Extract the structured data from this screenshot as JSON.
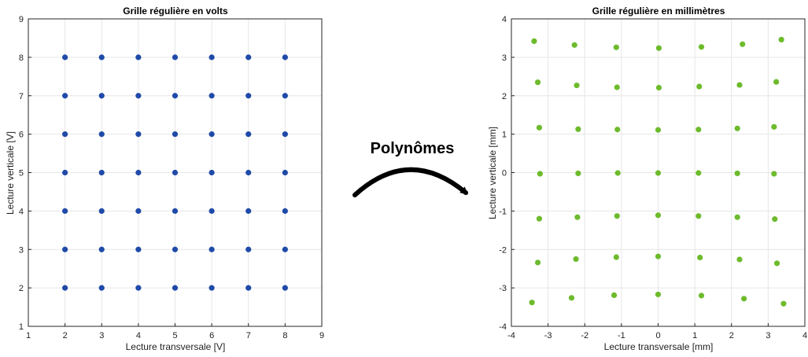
{
  "arrow_label": "Polynômes",
  "colors": {
    "left_points": "#1f4aa8",
    "right_points": "#6dbb2d",
    "grid": "#e6e6e6",
    "axes": "#262626"
  },
  "chart_data": [
    {
      "type": "scatter",
      "title": "Grille régulière en volts",
      "xlabel": "Lecture transversale [V]",
      "ylabel": "Lecture verticale [V]",
      "xlim": [
        1,
        9
      ],
      "ylim": [
        1,
        9
      ],
      "xticks": [
        1,
        2,
        3,
        4,
        5,
        6,
        7,
        8,
        9
      ],
      "yticks": [
        1,
        2,
        3,
        4,
        5,
        6,
        7,
        8,
        9
      ],
      "grid": true,
      "points": [
        [
          2,
          8
        ],
        [
          3,
          8
        ],
        [
          4,
          8
        ],
        [
          5,
          8
        ],
        [
          6,
          8
        ],
        [
          7,
          8
        ],
        [
          8,
          8
        ],
        [
          2,
          7
        ],
        [
          3,
          7
        ],
        [
          4,
          7
        ],
        [
          5,
          7
        ],
        [
          6,
          7
        ],
        [
          7,
          7
        ],
        [
          8,
          7
        ],
        [
          2,
          6
        ],
        [
          3,
          6
        ],
        [
          4,
          6
        ],
        [
          5,
          6
        ],
        [
          6,
          6
        ],
        [
          7,
          6
        ],
        [
          8,
          6
        ],
        [
          2,
          5
        ],
        [
          3,
          5
        ],
        [
          4,
          5
        ],
        [
          5,
          5
        ],
        [
          6,
          5
        ],
        [
          7,
          5
        ],
        [
          8,
          5
        ],
        [
          2,
          4
        ],
        [
          3,
          4
        ],
        [
          4,
          4
        ],
        [
          5,
          4
        ],
        [
          6,
          4
        ],
        [
          7,
          4
        ],
        [
          8,
          4
        ],
        [
          2,
          3
        ],
        [
          3,
          3
        ],
        [
          4,
          3
        ],
        [
          5,
          3
        ],
        [
          6,
          3
        ],
        [
          7,
          3
        ],
        [
          8,
          3
        ],
        [
          2,
          2
        ],
        [
          3,
          2
        ],
        [
          4,
          2
        ],
        [
          5,
          2
        ],
        [
          6,
          2
        ],
        [
          7,
          2
        ],
        [
          8,
          2
        ]
      ]
    },
    {
      "type": "scatter",
      "title": "Grille régulière en millimètres",
      "xlabel": "Lecture transversale [mm]",
      "ylabel": "Lecture verticale [mm]",
      "xlim": [
        -4,
        4
      ],
      "ylim": [
        -4,
        4
      ],
      "xticks": [
        -4,
        -3,
        -2,
        -1,
        0,
        1,
        2,
        3,
        4
      ],
      "yticks": [
        -4,
        -3,
        -2,
        -1,
        0,
        1,
        2,
        3,
        4
      ],
      "grid": true,
      "points": [
        [
          -3.38,
          3.42
        ],
        [
          -2.28,
          3.32
        ],
        [
          -1.14,
          3.26
        ],
        [
          0.02,
          3.24
        ],
        [
          1.18,
          3.27
        ],
        [
          2.3,
          3.34
        ],
        [
          3.36,
          3.46
        ],
        [
          -3.28,
          2.35
        ],
        [
          -2.22,
          2.27
        ],
        [
          -1.12,
          2.22
        ],
        [
          0.02,
          2.21
        ],
        [
          1.12,
          2.24
        ],
        [
          2.22,
          2.28
        ],
        [
          3.22,
          2.36
        ],
        [
          -3.24,
          1.17
        ],
        [
          -2.18,
          1.13
        ],
        [
          -1.11,
          1.12
        ],
        [
          0.0,
          1.11
        ],
        [
          1.1,
          1.12
        ],
        [
          2.16,
          1.15
        ],
        [
          3.16,
          1.19
        ],
        [
          -3.22,
          -0.03
        ],
        [
          -2.18,
          -0.02
        ],
        [
          -1.1,
          -0.01
        ],
        [
          0.0,
          -0.01
        ],
        [
          1.1,
          -0.01
        ],
        [
          2.16,
          -0.02
        ],
        [
          3.16,
          -0.03
        ],
        [
          -3.24,
          -1.2
        ],
        [
          -2.2,
          -1.16
        ],
        [
          -1.12,
          -1.13
        ],
        [
          0.0,
          -1.11
        ],
        [
          1.1,
          -1.13
        ],
        [
          2.16,
          -1.16
        ],
        [
          3.18,
          -1.21
        ],
        [
          -3.28,
          -2.34
        ],
        [
          -2.24,
          -2.25
        ],
        [
          -1.14,
          -2.2
        ],
        [
          0.0,
          -2.18
        ],
        [
          1.14,
          -2.21
        ],
        [
          2.22,
          -2.26
        ],
        [
          3.24,
          -2.36
        ],
        [
          -3.44,
          -3.38
        ],
        [
          -2.36,
          -3.26
        ],
        [
          -1.2,
          -3.19
        ],
        [
          0.0,
          -3.17
        ],
        [
          1.18,
          -3.2
        ],
        [
          2.34,
          -3.28
        ],
        [
          3.42,
          -3.41
        ]
      ]
    }
  ]
}
